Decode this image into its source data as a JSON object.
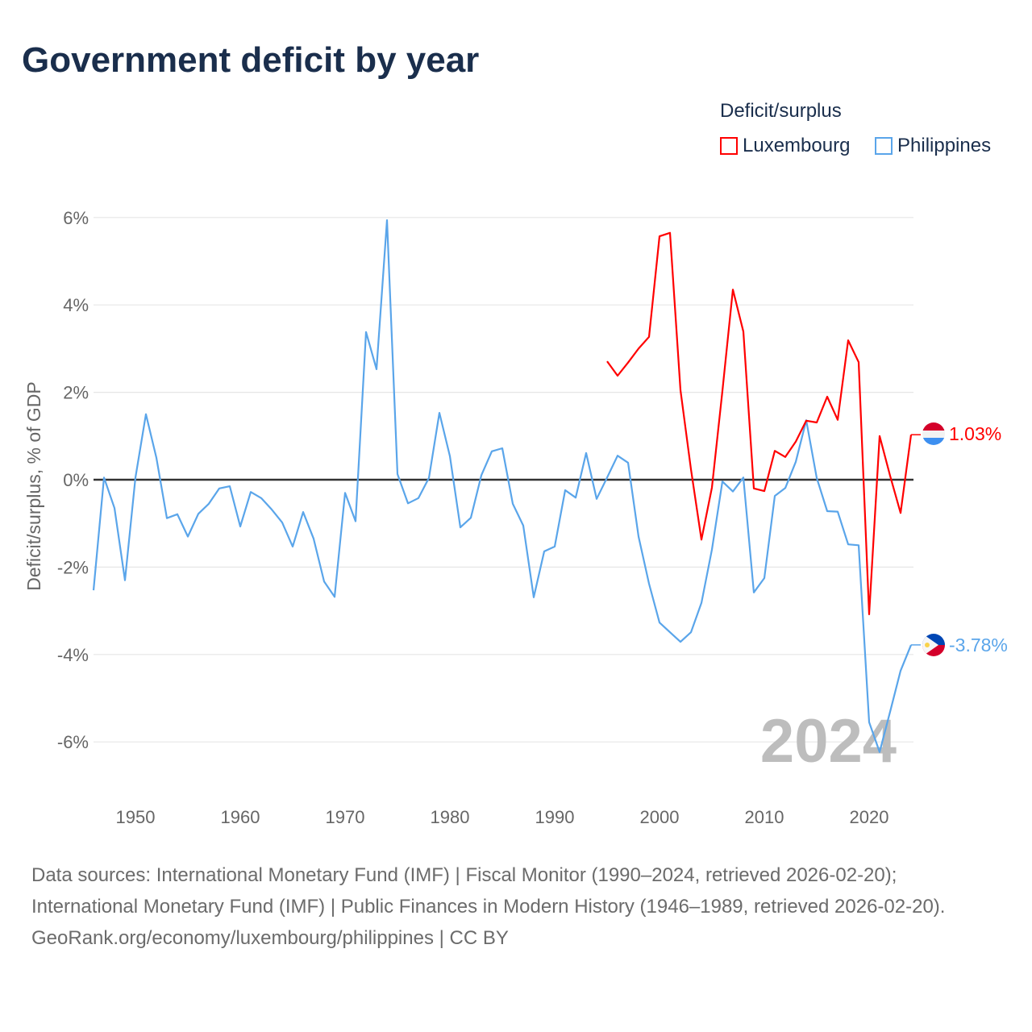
{
  "title": "Government deficit by year",
  "legend": {
    "title": "Deficit/surplus",
    "items": [
      {
        "label": "Luxembourg",
        "color": "#ff0000"
      },
      {
        "label": "Philippines",
        "color": "#5aa5ea"
      }
    ]
  },
  "chart_data": {
    "type": "line",
    "title": "Government deficit by year",
    "xlabel": "",
    "ylabel": "Deficit/surplus, % of GDP",
    "xlim": [
      1946,
      2024
    ],
    "ylim": [
      -7,
      6.2
    ],
    "x_ticks": [
      1950,
      1960,
      1970,
      1980,
      1990,
      2000,
      2010,
      2020
    ],
    "x_tick_labels": [
      "1950",
      "1960",
      "1970",
      "1980",
      "1990",
      "2000",
      "2010",
      "2020"
    ],
    "y_ticks": [
      6,
      4,
      2,
      0,
      -2,
      -4,
      -6
    ],
    "y_tick_labels": [
      "6%",
      "4%",
      "2%",
      "0%",
      "-2%",
      "-4%",
      "-6%"
    ],
    "grid": true,
    "legend_position": "top-right",
    "watermark_year": "2024",
    "series": [
      {
        "name": "Luxembourg",
        "color": "#ff0000",
        "end_label": "1.03%",
        "flag": "luxembourg-flag",
        "start_year": 1995,
        "values": [
          2.71,
          2.38,
          2.68,
          3.0,
          3.27,
          5.57,
          5.65,
          2.05,
          0.24,
          -1.37,
          -0.18,
          2.03,
          4.35,
          3.39,
          -0.2,
          -0.26,
          0.66,
          0.52,
          0.87,
          1.35,
          1.31,
          1.9,
          1.37,
          3.19,
          2.69,
          -3.08,
          1.0,
          0.09,
          -0.76,
          1.03
        ]
      },
      {
        "name": "Philippines",
        "color": "#5aa5ea",
        "end_label": "-3.78%",
        "flag": "philippines-flag",
        "start_year": 1946,
        "values": [
          -2.53,
          0.05,
          -0.65,
          -2.3,
          0.05,
          1.5,
          0.5,
          -0.88,
          -0.79,
          -1.3,
          -0.78,
          -0.55,
          -0.2,
          -0.15,
          -1.07,
          -0.28,
          -0.42,
          -0.68,
          -0.98,
          -1.53,
          -0.74,
          -1.35,
          -2.33,
          -2.68,
          -0.3,
          -0.95,
          3.38,
          2.53,
          5.94,
          0.13,
          -0.54,
          -0.42,
          0.04,
          1.53,
          0.54,
          -1.09,
          -0.87,
          0.1,
          0.65,
          0.72,
          -0.55,
          -1.05,
          -2.69,
          -1.64,
          -1.53,
          -0.24,
          -0.41,
          0.61,
          -0.44,
          0.05,
          0.55,
          0.39,
          -1.3,
          -2.38,
          -3.27,
          -3.49,
          -3.71,
          -3.49,
          -2.82,
          -1.6,
          -0.04,
          -0.27,
          0.05,
          -2.58,
          -2.25,
          -0.37,
          -0.19,
          0.41,
          1.36,
          0.04,
          -0.72,
          -0.73,
          -1.48,
          -1.5,
          -5.55,
          -6.23,
          -5.31,
          -4.37,
          -3.78
        ]
      }
    ]
  },
  "footer": {
    "sources": "Data sources: International Monetary Fund (IMF) | Fiscal Monitor (1990–2024, retrieved 2026-02-20); International Monetary Fund (IMF) | Public Finances in Modern History (1946–1989, retrieved 2026-02-20).",
    "credit": "GeoRank.org/economy/luxembourg/philippines | CC BY"
  }
}
